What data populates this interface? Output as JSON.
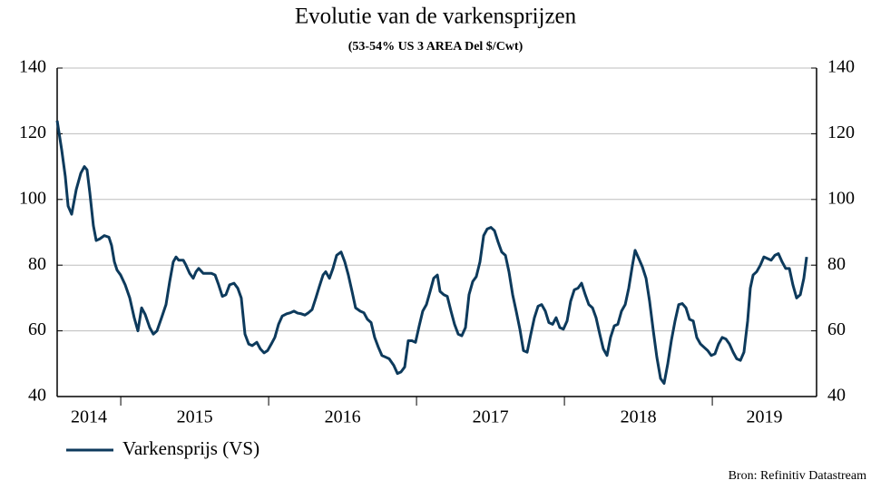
{
  "chart_data": {
    "type": "line",
    "title": "Evolutie van de varkensprijzen",
    "subtitle": "(53-54% US 3 AREA Del $/Cwt)",
    "source": "Bron: Refinitiv Datastream",
    "xlim": [
      2014.57,
      2019.705
    ],
    "xticks": [
      {
        "value": 2014,
        "label": "2014"
      },
      {
        "value": 2015,
        "label": "2015"
      },
      {
        "value": 2016,
        "label": "2016"
      },
      {
        "value": 2017,
        "label": "2017"
      },
      {
        "value": 2018,
        "label": "2018"
      },
      {
        "value": 2019,
        "label": "2019"
      }
    ],
    "ylim": [
      40,
      140
    ],
    "yticks": [
      40,
      60,
      80,
      100,
      120,
      140
    ],
    "y2lim": [
      40,
      140
    ],
    "y2ticks": [
      40,
      60,
      80,
      100,
      120,
      140
    ],
    "grid": true,
    "legend": "bottom-left",
    "x": [
      2014.57,
      2014.601,
      2014.625,
      2014.644,
      2014.668,
      2014.699,
      2014.73,
      2014.754,
      2014.772,
      2014.791,
      2014.815,
      2014.834,
      2014.858,
      2014.889,
      2014.92,
      2014.938,
      2014.957,
      2014.975,
      2014.999,
      2015.03,
      2015.061,
      2015.091,
      2015.116,
      2015.141,
      2015.165,
      2015.196,
      2015.22,
      2015.245,
      2015.276,
      2015.306,
      2015.331,
      2015.355,
      2015.374,
      2015.392,
      2015.423,
      2015.441,
      2015.466,
      2015.49,
      2015.509,
      2015.527,
      2015.558,
      2015.582,
      2015.613,
      2015.638,
      2015.662,
      2015.687,
      2015.711,
      2015.736,
      2015.766,
      2015.791,
      2015.815,
      2015.84,
      2015.865,
      2015.889,
      2015.92,
      2015.944,
      2015.969,
      2015.993,
      2016.018,
      2016.042,
      2016.067,
      2016.092,
      2016.122,
      2016.147,
      2016.171,
      2016.196,
      2016.22,
      2016.245,
      2016.269,
      2016.294,
      2016.319,
      2016.343,
      2016.368,
      2016.386,
      2016.411,
      2016.435,
      2016.46,
      2016.49,
      2016.515,
      2016.539,
      2016.564,
      2016.588,
      2016.619,
      2016.644,
      2016.668,
      2016.693,
      2016.717,
      2016.742,
      2016.766,
      2016.791,
      2016.815,
      2016.846,
      2016.871,
      2016.895,
      2016.92,
      2016.944,
      2016.969,
      2016.993,
      2017.018,
      2017.042,
      2017.067,
      2017.092,
      2017.116,
      2017.141,
      2017.159,
      2017.184,
      2017.208,
      2017.233,
      2017.257,
      2017.282,
      2017.306,
      2017.331,
      2017.355,
      2017.38,
      2017.404,
      2017.429,
      2017.454,
      2017.478,
      2017.503,
      2017.527,
      2017.552,
      2017.576,
      2017.601,
      2017.625,
      2017.65,
      2017.674,
      2017.699,
      2017.723,
      2017.748,
      2017.773,
      2017.797,
      2017.822,
      2017.846,
      2017.871,
      2017.895,
      2017.92,
      2017.944,
      2017.969,
      2017.993,
      2018.018,
      2018.042,
      2018.067,
      2018.092,
      2018.116,
      2018.141,
      2018.165,
      2018.19,
      2018.214,
      2018.239,
      2018.263,
      2018.288,
      2018.312,
      2018.337,
      2018.361,
      2018.386,
      2018.411,
      2018.435,
      2018.46,
      2018.478,
      2018.503,
      2018.527,
      2018.552,
      2018.576,
      2018.601,
      2018.625,
      2018.65,
      2018.674,
      2018.699,
      2018.723,
      2018.748,
      2018.773,
      2018.797,
      2018.822,
      2018.846,
      2018.871,
      2018.895,
      2018.92,
      2018.944,
      2018.969,
      2018.993,
      2019.018,
      2019.042,
      2019.067,
      2019.092,
      2019.116,
      2019.141,
      2019.165,
      2019.19,
      2019.214,
      2019.239,
      2019.257,
      2019.276,
      2019.3,
      2019.325,
      2019.349,
      2019.374,
      2019.398,
      2019.423,
      2019.447,
      2019.472,
      2019.496,
      2019.521,
      2019.545,
      2019.57,
      2019.595,
      2019.619,
      2019.638
    ],
    "series": [
      {
        "name": "Varkensprijs (VS)",
        "color": "#0d3a5c",
        "values": [
          124,
          115,
          107,
          98,
          95.5,
          103,
          108,
          110,
          109,
          102,
          92,
          87.5,
          88,
          89,
          88.5,
          86,
          81,
          78.5,
          77,
          74,
          70,
          64,
          60,
          67,
          65,
          61,
          59,
          60,
          64,
          68,
          75,
          81,
          82.5,
          81.5,
          81.5,
          80,
          77.5,
          76,
          78,
          79,
          77.5,
          77.5,
          77.5,
          77,
          74,
          70.5,
          71,
          74,
          74.5,
          73,
          70,
          59,
          56,
          55.5,
          56.5,
          54.5,
          53.3,
          54,
          56,
          58,
          62,
          64.5,
          65.2,
          65.5,
          66,
          65.4,
          65.2,
          64.8,
          65.5,
          66.5,
          70,
          73.5,
          77,
          78,
          76,
          79,
          83,
          84,
          81,
          77,
          72,
          67,
          66,
          65.5,
          63.5,
          62.5,
          58,
          55,
          52.5,
          52,
          51.5,
          49.5,
          47,
          47.5,
          49,
          57,
          57,
          56.5,
          61.5,
          66,
          68,
          72,
          76,
          77,
          72,
          71,
          70.5,
          66,
          62,
          59,
          58.5,
          61,
          71,
          75,
          76.5,
          81,
          89,
          91,
          91.5,
          90.5,
          87,
          84,
          83,
          78,
          71,
          66,
          60.5,
          54,
          53.5,
          59,
          64,
          67.5,
          68,
          66,
          62.5,
          62,
          64,
          61,
          60.5,
          63,
          69,
          72.5,
          73,
          74.5,
          71,
          68,
          67,
          64,
          59,
          54.5,
          52.5,
          58,
          61.5,
          62,
          66,
          68,
          73,
          80,
          84.5,
          82,
          79.5,
          76,
          69,
          60,
          52,
          45.5,
          44,
          50,
          57,
          63,
          68,
          68.3,
          67,
          63.5,
          63,
          58,
          56,
          55,
          54,
          52.5,
          53,
          56,
          58,
          57.5,
          56,
          53.5,
          51.5,
          51,
          53.5,
          63,
          73,
          77,
          78,
          80,
          82.5,
          82,
          81.5,
          83,
          83.5,
          81,
          79,
          79,
          74,
          70,
          71,
          76,
          82.5
        ]
      }
    ]
  }
}
